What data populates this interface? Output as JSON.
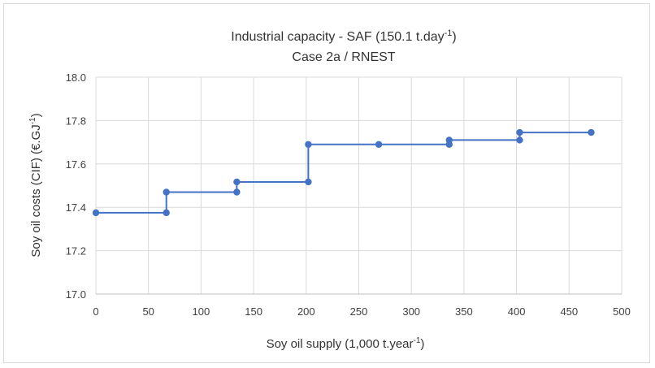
{
  "chart_data": {
    "type": "line",
    "title_line1": "Industrial capacity - SAF (150.1 t.day",
    "title_line1_sup": "-1",
    "title_line1_end": ")",
    "title_line2": "Case 2a / RNEST",
    "xlabel": "Soy oil supply (1,000 t.year",
    "xlabel_sup": "-1",
    "xlabel_end": ")",
    "ylabel": "Soy oil costs (CIF) (€.GJ",
    "ylabel_sup": "-1",
    "ylabel_end": ")",
    "xlim": [
      0,
      500
    ],
    "ylim": [
      17.0,
      18.0
    ],
    "x_ticks": [
      0,
      50,
      100,
      150,
      200,
      250,
      300,
      350,
      400,
      450,
      500
    ],
    "y_ticks": [
      "17.0",
      "17.2",
      "17.4",
      "17.6",
      "17.8",
      "18.0"
    ],
    "grid": true,
    "series": [
      {
        "color": "#4472c4",
        "x": [
          0,
          67,
          67,
          134,
          134,
          202,
          202,
          269,
          336,
          336,
          403,
          403,
          471
        ],
        "y": [
          17.375,
          17.375,
          17.47,
          17.47,
          17.517,
          17.517,
          17.69,
          17.69,
          17.69,
          17.71,
          17.71,
          17.745,
          17.745
        ]
      }
    ]
  }
}
